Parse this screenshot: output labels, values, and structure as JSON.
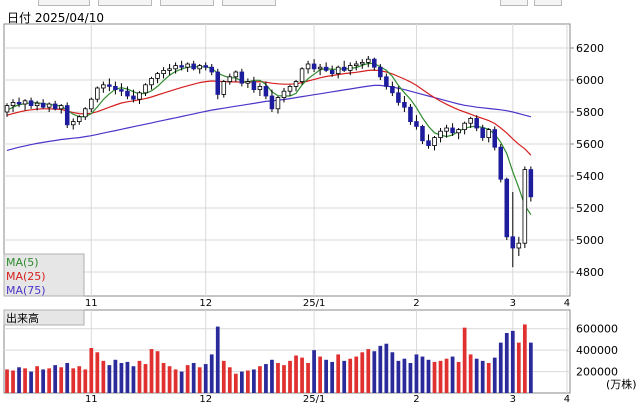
{
  "header": {
    "date_label": "日付 2025/04/10"
  },
  "colors": {
    "up_candle": "#ffffff",
    "down_candle": "#1c1c9c",
    "ma5": "#2e8b2e",
    "ma25": "#d62020",
    "ma75": "#4b35c9",
    "volume_up": "#e03030",
    "volume_down": "#2a2a9a",
    "grid": "#d9d9d9",
    "frame": "#888888",
    "legend_box": "#e6e6e6"
  },
  "legend": {
    "ma5": "MA(5)",
    "ma25": "MA(25)",
    "ma75": "MA(75)"
  },
  "volume_panel": {
    "title": "出来高",
    "unit": "(万株)"
  },
  "chart_data": [
    {
      "type": "candlestick",
      "title": "",
      "x_tick_labels": [
        "11",
        "12",
        "25/1",
        "2",
        "3",
        "4"
      ],
      "ylim": [
        4650,
        6350
      ],
      "y_ticks": [
        4800,
        5000,
        5200,
        5400,
        5600,
        5800,
        6000,
        6200
      ],
      "grid": true,
      "ohlc": [
        [
          5800,
          5855,
          5770,
          5840
        ],
        [
          5840,
          5880,
          5800,
          5860
        ],
        [
          5860,
          5890,
          5830,
          5850
        ],
        [
          5850,
          5880,
          5810,
          5870
        ],
        [
          5870,
          5890,
          5820,
          5840
        ],
        [
          5840,
          5870,
          5810,
          5855
        ],
        [
          5855,
          5880,
          5820,
          5830
        ],
        [
          5830,
          5860,
          5800,
          5850
        ],
        [
          5850,
          5870,
          5810,
          5820
        ],
        [
          5820,
          5850,
          5790,
          5840
        ],
        [
          5840,
          5860,
          5700,
          5720
        ],
        [
          5720,
          5760,
          5690,
          5740
        ],
        [
          5740,
          5780,
          5720,
          5770
        ],
        [
          5770,
          5830,
          5750,
          5820
        ],
        [
          5820,
          5890,
          5800,
          5880
        ],
        [
          5880,
          5960,
          5860,
          5950
        ],
        [
          5950,
          5990,
          5920,
          5970
        ],
        [
          5970,
          6010,
          5930,
          5960
        ],
        [
          5960,
          5990,
          5910,
          5940
        ],
        [
          5940,
          5980,
          5900,
          5930
        ],
        [
          5930,
          5960,
          5880,
          5900
        ],
        [
          5900,
          5940,
          5860,
          5880
        ],
        [
          5880,
          5930,
          5850,
          5920
        ],
        [
          5920,
          5980,
          5900,
          5970
        ],
        [
          5970,
          6020,
          5940,
          6010
        ],
        [
          6010,
          6050,
          5980,
          6040
        ],
        [
          6040,
          6080,
          6010,
          6060
        ],
        [
          6060,
          6100,
          6030,
          6070
        ],
        [
          6070,
          6110,
          6040,
          6090
        ],
        [
          6090,
          6120,
          6060,
          6080
        ],
        [
          6080,
          6110,
          6050,
          6100
        ],
        [
          6100,
          6120,
          6060,
          6070
        ],
        [
          6070,
          6100,
          6040,
          6090
        ],
        [
          6090,
          6110,
          6060,
          6080
        ],
        [
          6080,
          6100,
          6030,
          6050
        ],
        [
          6050,
          6070,
          5880,
          5910
        ],
        [
          5910,
          6000,
          5890,
          5990
        ],
        [
          5990,
          6040,
          5970,
          6020
        ],
        [
          6020,
          6060,
          5990,
          6050
        ],
        [
          6050,
          6070,
          5960,
          5980
        ],
        [
          5980,
          6010,
          5950,
          5990
        ],
        [
          5990,
          6020,
          5920,
          5940
        ],
        [
          5940,
          5980,
          5900,
          5960
        ],
        [
          5960,
          5990,
          5880,
          5900
        ],
        [
          5900,
          5940,
          5800,
          5820
        ],
        [
          5820,
          5900,
          5790,
          5890
        ],
        [
          5890,
          5950,
          5860,
          5930
        ],
        [
          5930,
          5970,
          5900,
          5960
        ],
        [
          5960,
          6000,
          5930,
          5990
        ],
        [
          5990,
          6080,
          5970,
          6070
        ],
        [
          6070,
          6120,
          6040,
          6100
        ],
        [
          6100,
          6130,
          6050,
          6070
        ],
        [
          6070,
          6100,
          6030,
          6080
        ],
        [
          6080,
          6110,
          6050,
          6060
        ],
        [
          6060,
          6090,
          6020,
          6040
        ],
        [
          6040,
          6090,
          6010,
          6080
        ],
        [
          6080,
          6120,
          6050,
          6060
        ],
        [
          6060,
          6110,
          6030,
          6090
        ],
        [
          6090,
          6120,
          6060,
          6100
        ],
        [
          6100,
          6130,
          6070,
          6110
        ],
        [
          6110,
          6150,
          6080,
          6130
        ],
        [
          6130,
          6140,
          6060,
          6080
        ],
        [
          6080,
          6100,
          6000,
          6020
        ],
        [
          6020,
          6040,
          5940,
          5960
        ],
        [
          5960,
          5990,
          5900,
          5920
        ],
        [
          5920,
          5960,
          5840,
          5860
        ],
        [
          5860,
          5900,
          5800,
          5830
        ],
        [
          5830,
          5850,
          5720,
          5740
        ],
        [
          5740,
          5780,
          5690,
          5710
        ],
        [
          5710,
          5720,
          5600,
          5620
        ],
        [
          5620,
          5660,
          5570,
          5590
        ],
        [
          5590,
          5650,
          5560,
          5640
        ],
        [
          5640,
          5700,
          5610,
          5680
        ],
        [
          5680,
          5720,
          5640,
          5700
        ],
        [
          5700,
          5730,
          5650,
          5670
        ],
        [
          5670,
          5700,
          5630,
          5690
        ],
        [
          5690,
          5740,
          5660,
          5730
        ],
        [
          5730,
          5770,
          5700,
          5760
        ],
        [
          5760,
          5780,
          5680,
          5700
        ],
        [
          5700,
          5720,
          5620,
          5640
        ],
        [
          5640,
          5700,
          5610,
          5690
        ],
        [
          5690,
          5710,
          5560,
          5580
        ],
        [
          5580,
          5600,
          5360,
          5380
        ],
        [
          5380,
          5390,
          5000,
          5020
        ],
        [
          5020,
          5300,
          4830,
          4950
        ],
        [
          4950,
          5020,
          4900,
          4980
        ],
        [
          4980,
          5460,
          4950,
          5440
        ],
        [
          5440,
          5460,
          5240,
          5270
        ]
      ],
      "ma5": [
        5810,
        5830,
        5845,
        5852,
        5858,
        5858,
        5852,
        5848,
        5842,
        5838,
        5810,
        5786,
        5770,
        5772,
        5790,
        5832,
        5878,
        5914,
        5942,
        5952,
        5944,
        5926,
        5914,
        5916,
        5932,
        5960,
        5996,
        6030,
        6054,
        6068,
        6080,
        6084,
        6082,
        6082,
        6074,
        6042,
        6026,
        6014,
        6014,
        5992,
        5988,
        5998,
        5998,
        5972,
        5926,
        5902,
        5900,
        5900,
        5916,
        5970,
        6008,
        6036,
        6064,
        6072,
        6066,
        6068,
        6070,
        6072,
        6078,
        6092,
        6104,
        6102,
        6084,
        6060,
        6022,
        5966,
        5920,
        5880,
        5826,
        5764,
        5710,
        5670,
        5656,
        5646,
        5656,
        5680,
        5696,
        5708,
        5710,
        5704,
        5692,
        5662,
        5610,
        5540,
        5426,
        5326,
        5216,
        5158
      ],
      "ma25": [
        5780,
        5790,
        5800,
        5808,
        5814,
        5818,
        5820,
        5820,
        5818,
        5816,
        5806,
        5796,
        5790,
        5788,
        5792,
        5802,
        5816,
        5830,
        5844,
        5856,
        5864,
        5870,
        5876,
        5884,
        5894,
        5906,
        5918,
        5930,
        5942,
        5954,
        5964,
        5974,
        5984,
        5990,
        5994,
        5992,
        5990,
        5988,
        5988,
        5986,
        5986,
        5988,
        5990,
        5986,
        5980,
        5976,
        5974,
        5974,
        5976,
        5984,
        5994,
        6004,
        6014,
        6022,
        6028,
        6034,
        6040,
        6044,
        6048,
        6054,
        6060,
        6062,
        6058,
        6050,
        6038,
        6022,
        6006,
        5988,
        5966,
        5940,
        5914,
        5890,
        5868,
        5848,
        5830,
        5814,
        5800,
        5786,
        5772,
        5760,
        5746,
        5728,
        5700,
        5668,
        5632,
        5598,
        5570,
        5530
      ],
      "ma75": [
        5560,
        5570,
        5580,
        5588,
        5596,
        5604,
        5610,
        5616,
        5622,
        5628,
        5632,
        5636,
        5640,
        5646,
        5652,
        5660,
        5668,
        5676,
        5684,
        5692,
        5700,
        5708,
        5716,
        5724,
        5732,
        5740,
        5748,
        5756,
        5764,
        5772,
        5780,
        5788,
        5796,
        5804,
        5812,
        5818,
        5824,
        5830,
        5836,
        5842,
        5848,
        5854,
        5860,
        5866,
        5870,
        5874,
        5878,
        5884,
        5890,
        5896,
        5902,
        5908,
        5914,
        5920,
        5926,
        5932,
        5938,
        5944,
        5950,
        5956,
        5962,
        5966,
        5966,
        5962,
        5956,
        5948,
        5940,
        5930,
        5920,
        5910,
        5900,
        5890,
        5880,
        5870,
        5860,
        5850,
        5842,
        5836,
        5830,
        5826,
        5822,
        5818,
        5814,
        5808,
        5800,
        5790,
        5780,
        5770
      ]
    },
    {
      "type": "bar",
      "title": "出来高",
      "unit": "(万株)",
      "ylim": [
        0,
        700000
      ],
      "y_ticks": [
        200000,
        400000,
        600000
      ],
      "x_tick_labels": [
        "11",
        "12",
        "25/1",
        "2",
        "3",
        "4"
      ],
      "values": [
        220000,
        210000,
        240000,
        230000,
        200000,
        250000,
        220000,
        230000,
        260000,
        240000,
        280000,
        230000,
        250000,
        220000,
        420000,
        380000,
        300000,
        260000,
        310000,
        280000,
        290000,
        250000,
        300000,
        270000,
        410000,
        390000,
        280000,
        250000,
        220000,
        200000,
        260000,
        280000,
        240000,
        270000,
        360000,
        620000,
        300000,
        240000,
        180000,
        200000,
        210000,
        220000,
        250000,
        270000,
        310000,
        280000,
        260000,
        300000,
        350000,
        330000,
        280000,
        400000,
        340000,
        310000,
        290000,
        360000,
        300000,
        320000,
        340000,
        380000,
        410000,
        390000,
        440000,
        460000,
        380000,
        300000,
        320000,
        280000,
        360000,
        340000,
        310000,
        290000,
        300000,
        320000,
        340000,
        290000,
        610000,
        360000,
        320000,
        300000,
        280000,
        330000,
        470000,
        560000,
        580000,
        470000,
        640000,
        470000
      ],
      "volume_up": [
        true,
        true,
        false,
        true,
        false,
        true,
        false,
        true,
        false,
        true,
        false,
        true,
        true,
        true,
        true,
        true,
        true,
        false,
        false,
        false,
        false,
        false,
        true,
        true,
        true,
        true,
        true,
        true,
        true,
        false,
        true,
        false,
        true,
        false,
        false,
        false,
        true,
        true,
        true,
        false,
        true,
        false,
        true,
        false,
        false,
        true,
        true,
        true,
        true,
        true,
        true,
        false,
        true,
        false,
        false,
        true,
        false,
        true,
        true,
        true,
        true,
        false,
        false,
        false,
        false,
        false,
        false,
        false,
        false,
        false,
        false,
        true,
        true,
        true,
        false,
        true,
        true,
        true,
        false,
        false,
        true,
        false,
        false,
        false,
        false,
        true,
        true,
        false
      ]
    }
  ]
}
